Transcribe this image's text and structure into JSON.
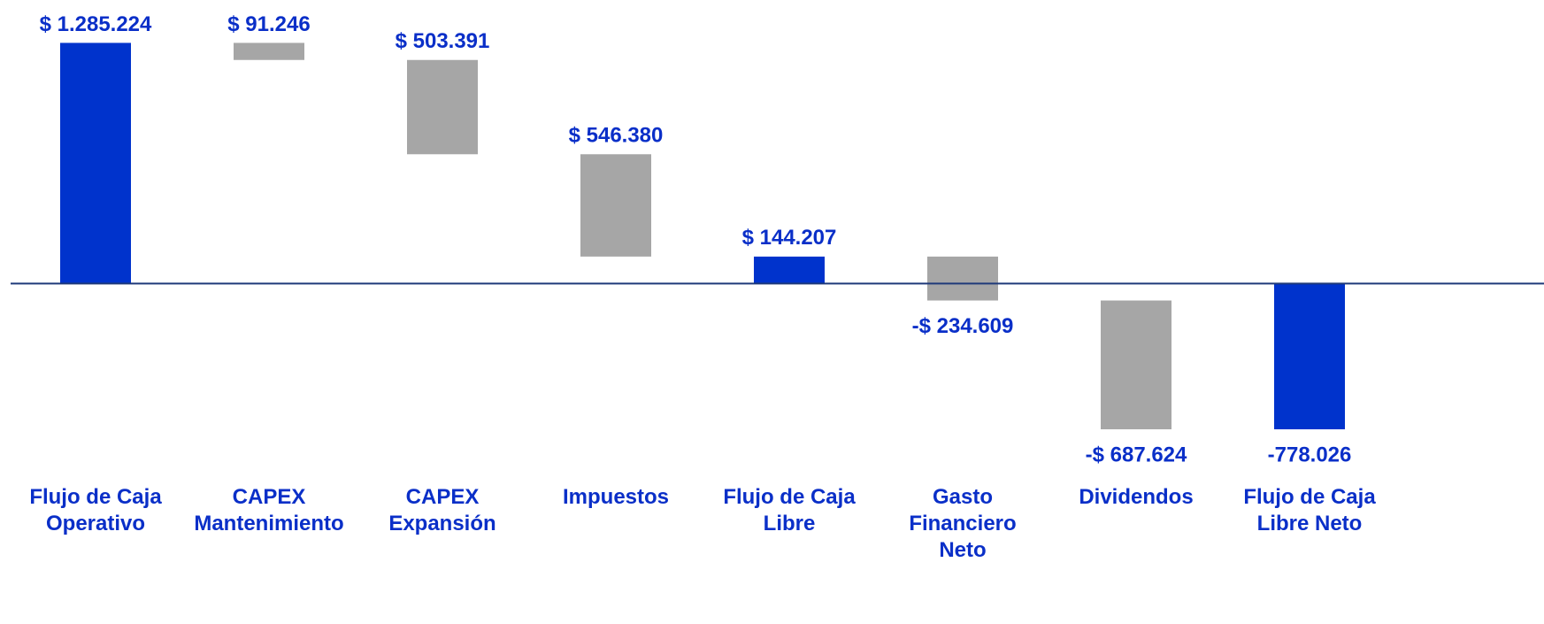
{
  "chart_data": {
    "type": "waterfall",
    "categories": [
      "Flujo de Caja\nOperativo",
      "CAPEX\nMantenimiento",
      "CAPEX\nExpansión",
      "Impuestos",
      "Flujo de Caja\nLibre",
      "Gasto\nFinanciero\nNeto",
      "Dividendos",
      "Flujo de Caja\nLibre Neto"
    ],
    "values": [
      1285224,
      -91246,
      -503391,
      -546380,
      144207,
      -234609,
      -687624,
      -778026
    ],
    "value_labels": [
      "$ 1.285.224",
      "$ 91.246",
      "$ 503.391",
      "$ 546.380",
      "$ 144.207",
      "-$ 234.609",
      "-$ 687.624",
      "-778.026"
    ],
    "measures": [
      "total",
      "relative",
      "relative",
      "relative",
      "total",
      "relative",
      "relative",
      "total"
    ],
    "colors": {
      "total": "#0033cc",
      "relative": "#a6a6a6"
    },
    "ylim": [
      -1000000,
      1500000
    ]
  }
}
